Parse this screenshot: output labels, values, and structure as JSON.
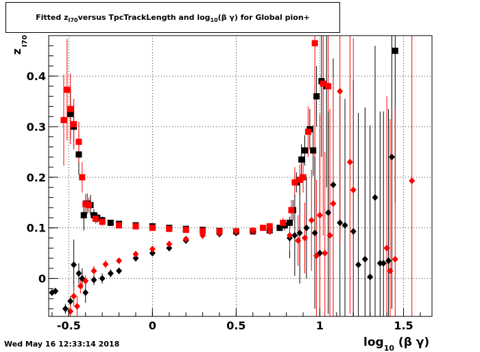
{
  "title": {
    "prefix": "Fitted  z",
    "sub": "I70",
    "suffix": "  versus TpcTrackLength and log",
    "sub2": "10",
    "tail": " (β γ) for Global pion+"
  },
  "timestamp": "Wed May 16 12:33:14 2018",
  "chart_data": {
    "type": "scatter",
    "xlabel_main": "log",
    "xlabel_sub": "10",
    "xlabel_tail": " (β γ)",
    "ylabel_main": "z",
    "ylabel_sub": "I70",
    "xlim": [
      -0.62,
      1.67
    ],
    "ylim": [
      -0.075,
      0.48
    ],
    "grid": true,
    "x_ticks": [
      {
        "v": -0.5,
        "label": "-0.5"
      },
      {
        "v": 0,
        "label": "0"
      },
      {
        "v": 0.5,
        "label": "0.5"
      },
      {
        "v": 1,
        "label": "1"
      },
      {
        "v": 1.5,
        "label": "1.5"
      }
    ],
    "y_ticks": [
      {
        "v": 0,
        "label": "0"
      },
      {
        "v": 0.1,
        "label": "0.1"
      },
      {
        "v": 0.2,
        "label": "0.2"
      },
      {
        "v": 0.3,
        "label": "0.3"
      },
      {
        "v": 0.4,
        "label": "0.4"
      }
    ],
    "colors": {
      "black": "#000000",
      "red": "#ff0000"
    },
    "series": [
      {
        "marker": "square",
        "color": "#000000",
        "points": [
          [
            -0.49,
            0.325,
            0.05
          ],
          [
            -0.47,
            0.3,
            0.04
          ],
          [
            -0.44,
            0.245,
            0.04
          ],
          [
            -0.41,
            0.125,
            0.03
          ],
          [
            -0.39,
            0.148,
            0.02
          ],
          [
            -0.37,
            0.145,
            0.02
          ],
          [
            -0.35,
            0.125,
            0.012
          ],
          [
            -0.33,
            0.12,
            0.01
          ],
          [
            -0.3,
            0.115,
            0.008
          ],
          [
            -0.25,
            0.11,
            0.005
          ],
          [
            -0.2,
            0.108,
            0.004
          ],
          [
            -0.1,
            0.105,
            0.003
          ],
          [
            0.0,
            0.103,
            0.003
          ],
          [
            0.1,
            0.1,
            0.003
          ],
          [
            0.2,
            0.098,
            0.003
          ],
          [
            0.3,
            0.096,
            0.003
          ],
          [
            0.4,
            0.094,
            0.003
          ],
          [
            0.5,
            0.093,
            0.003
          ],
          [
            0.6,
            0.093,
            0.004
          ],
          [
            0.7,
            0.095,
            0.005
          ],
          [
            0.76,
            0.1,
            0.006
          ],
          [
            0.79,
            0.105,
            0.01
          ],
          [
            0.82,
            0.11,
            0.012
          ],
          [
            0.84,
            0.135,
            0.02
          ],
          [
            0.86,
            0.19,
            0.02
          ],
          [
            0.89,
            0.235,
            0.03
          ],
          [
            0.91,
            0.253,
            0.03
          ],
          [
            0.94,
            0.295,
            0.04
          ],
          [
            0.96,
            0.253,
            0.05
          ],
          [
            0.98,
            0.36,
            0.06
          ],
          [
            1.01,
            0.39,
            0.15
          ],
          [
            1.04,
            0.38,
            0.2
          ],
          [
            1.45,
            0.45,
            0.3
          ]
        ]
      },
      {
        "marker": "square",
        "color": "#ff0000",
        "points": [
          [
            -0.53,
            0.313,
            0.09
          ],
          [
            -0.51,
            0.373,
            0.1
          ],
          [
            -0.49,
            0.335,
            0.07
          ],
          [
            -0.47,
            0.305,
            0.05
          ],
          [
            -0.44,
            0.27,
            0.04
          ],
          [
            -0.42,
            0.2,
            0.03
          ],
          [
            -0.4,
            0.147,
            0.02
          ],
          [
            -0.38,
            0.145,
            0.015
          ],
          [
            -0.34,
            0.118,
            0.01
          ],
          [
            -0.3,
            0.112,
            0.008
          ],
          [
            -0.2,
            0.105,
            0.004
          ],
          [
            -0.1,
            0.103,
            0.003
          ],
          [
            0.0,
            0.1,
            0.003
          ],
          [
            0.1,
            0.098,
            0.003
          ],
          [
            0.2,
            0.096,
            0.003
          ],
          [
            0.3,
            0.094,
            0.003
          ],
          [
            0.4,
            0.093,
            0.003
          ],
          [
            0.5,
            0.093,
            0.003
          ],
          [
            0.6,
            0.094,
            0.004
          ],
          [
            0.66,
            0.1,
            0.005
          ],
          [
            0.7,
            0.103,
            0.006
          ],
          [
            0.78,
            0.11,
            0.01
          ],
          [
            0.83,
            0.135,
            0.02
          ],
          [
            0.85,
            0.19,
            0.03
          ],
          [
            0.88,
            0.195,
            0.03
          ],
          [
            0.9,
            0.2,
            0.03
          ],
          [
            0.93,
            0.29,
            0.05
          ],
          [
            0.97,
            0.465,
            0.35
          ],
          [
            1.02,
            0.385,
            0.3
          ],
          [
            1.05,
            0.38,
            0.3
          ]
        ]
      },
      {
        "marker": "diamond",
        "color": "#000000",
        "points": [
          [
            -0.6,
            -0.028,
            0.005
          ],
          [
            -0.58,
            -0.025,
            0.005
          ],
          [
            -0.52,
            -0.06,
            0.01
          ],
          [
            -0.49,
            -0.045,
            0.01
          ],
          [
            -0.47,
            0.027,
            0.05
          ],
          [
            -0.44,
            0.01,
            0.02
          ],
          [
            -0.42,
            0.0,
            0.02
          ],
          [
            -0.4,
            -0.028,
            0.02
          ],
          [
            -0.35,
            -0.003,
            0.01
          ],
          [
            -0.3,
            0.0,
            0.01
          ],
          [
            -0.25,
            0.01,
            0.008
          ],
          [
            -0.2,
            0.015,
            0.006
          ],
          [
            -0.1,
            0.04,
            0.005
          ],
          [
            0.0,
            0.05,
            0.004
          ],
          [
            0.1,
            0.06,
            0.004
          ],
          [
            0.2,
            0.075,
            0.003
          ],
          [
            0.3,
            0.085,
            0.003
          ],
          [
            0.4,
            0.088,
            0.003
          ],
          [
            0.5,
            0.09,
            0.003
          ],
          [
            0.6,
            0.093,
            0.004
          ],
          [
            0.7,
            0.093,
            0.005
          ],
          [
            0.82,
            0.08,
            0.04
          ],
          [
            0.85,
            0.085,
            0.08
          ],
          [
            0.88,
            0.09,
            0.1
          ],
          [
            0.92,
            0.1,
            0.1
          ],
          [
            0.97,
            0.09,
            0.15
          ],
          [
            1.0,
            0.05,
            0.2
          ],
          [
            1.05,
            0.13,
            0.2
          ],
          [
            1.08,
            0.185,
            0.25
          ],
          [
            1.12,
            0.11,
            0.25
          ],
          [
            1.15,
            0.105,
            0.25
          ],
          [
            1.2,
            0.093,
            0.3
          ],
          [
            1.23,
            0.027,
            0.3
          ],
          [
            1.27,
            0.038,
            0.3
          ],
          [
            1.3,
            0.003,
            0.3
          ],
          [
            1.33,
            0.16,
            0.3
          ],
          [
            1.36,
            0.03,
            0.3
          ],
          [
            1.38,
            0.03,
            0.3
          ],
          [
            1.41,
            0.035,
            0.3
          ],
          [
            1.43,
            0.24,
            0.3
          ]
        ]
      },
      {
        "marker": "diamond",
        "color": "#ff0000",
        "points": [
          [
            -0.49,
            -0.065,
            0.02
          ],
          [
            -0.47,
            -0.035,
            0.02
          ],
          [
            -0.45,
            -0.055,
            0.02
          ],
          [
            -0.43,
            -0.015,
            0.015
          ],
          [
            -0.4,
            -0.005,
            0.012
          ],
          [
            -0.35,
            0.015,
            0.01
          ],
          [
            -0.28,
            0.028,
            0.008
          ],
          [
            -0.2,
            0.035,
            0.006
          ],
          [
            -0.1,
            0.048,
            0.005
          ],
          [
            0.0,
            0.058,
            0.004
          ],
          [
            0.1,
            0.068,
            0.004
          ],
          [
            0.2,
            0.078,
            0.003
          ],
          [
            0.3,
            0.085,
            0.003
          ],
          [
            0.4,
            0.09,
            0.003
          ],
          [
            0.5,
            0.093,
            0.003
          ],
          [
            0.6,
            0.095,
            0.004
          ],
          [
            0.7,
            0.093,
            0.005
          ],
          [
            0.82,
            0.085,
            0.03
          ],
          [
            0.87,
            0.075,
            0.05
          ],
          [
            0.91,
            0.08,
            0.07
          ],
          [
            0.95,
            0.115,
            0.1
          ],
          [
            0.98,
            0.045,
            0.15
          ],
          [
            1.0,
            0.125,
            0.2
          ],
          [
            1.03,
            0.05,
            0.2
          ],
          [
            1.06,
            0.085,
            0.25
          ],
          [
            1.08,
            0.148,
            0.25
          ],
          [
            1.12,
            0.37,
            0.3
          ],
          [
            1.18,
            0.23,
            0.3
          ],
          [
            1.2,
            0.175,
            0.3
          ],
          [
            1.4,
            0.06,
            0.3
          ],
          [
            1.42,
            0.015,
            0.3
          ],
          [
            1.45,
            0.038,
            0.3
          ],
          [
            1.55,
            0.193,
            0.3
          ]
        ]
      }
    ]
  }
}
